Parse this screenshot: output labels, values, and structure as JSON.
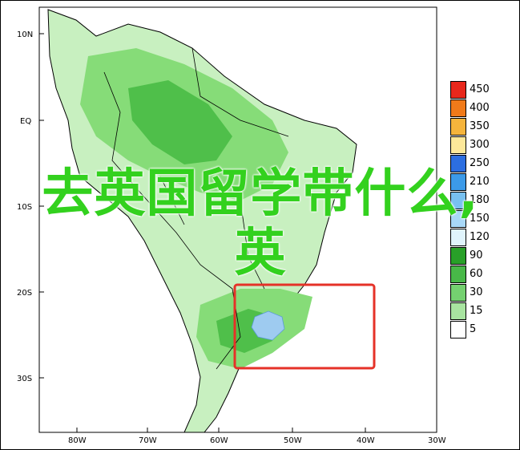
{
  "map": {
    "lat_labels": [
      "10N",
      "EQ",
      "10S",
      "20S",
      "30S"
    ],
    "lon_labels": [
      "80W",
      "70W",
      "60W",
      "50W",
      "40W",
      "30W"
    ],
    "colors": {
      "ocean": "#ffffff",
      "land_light": "#c8f0c0",
      "land_mid": "#86dc78",
      "land_dark": "#4fbf4a",
      "rain_blue": "#9ecbf0",
      "coastline": "#000000",
      "highlight_box": "#e53228"
    }
  },
  "legend": {
    "items": [
      {
        "label": "450",
        "color": "#e8281c"
      },
      {
        "label": "400",
        "color": "#f07a1a"
      },
      {
        "label": "350",
        "color": "#f5b43c"
      },
      {
        "label": "300",
        "color": "#fde89a"
      },
      {
        "label": "250",
        "color": "#2c6ee0"
      },
      {
        "label": "210",
        "color": "#3c9ae8"
      },
      {
        "label": "180",
        "color": "#78c0f0"
      },
      {
        "label": "150",
        "color": "#a8d8f8"
      },
      {
        "label": "120",
        "color": "#e0f4fc"
      },
      {
        "label": "90",
        "color": "#28a028"
      },
      {
        "label": "60",
        "color": "#48b848"
      },
      {
        "label": "30",
        "color": "#74d070"
      },
      {
        "label": "15",
        "color": "#a8e4a0"
      },
      {
        "label": "5",
        "color": "#ffffff"
      }
    ]
  },
  "overlay": {
    "title": "去英国留学带什么,英"
  }
}
